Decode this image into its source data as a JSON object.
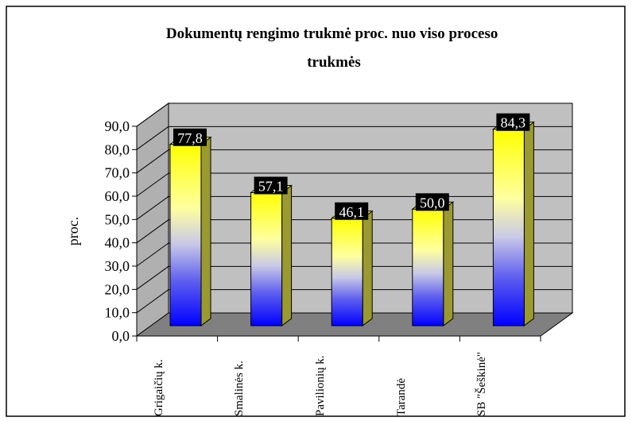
{
  "chart_data": {
    "type": "bar3d",
    "title": "Dokumentų rengimo trukmė proc. nuo viso proceso trukmės",
    "ylabel": "proc.",
    "categories": [
      "Grigaičių k.",
      "Smalinės k.",
      "Pavilionių k.",
      "Tarandė",
      "SB \"Šeškinė\""
    ],
    "values": [
      77.8,
      57.1,
      46.1,
      50.0,
      84.3
    ],
    "value_labels": [
      "77,8",
      "57,1",
      "46,1",
      "50,0",
      "84,3"
    ],
    "ylim": [
      0,
      90
    ],
    "yticks": [
      {
        "value": 0,
        "label": "0,0"
      },
      {
        "value": 10,
        "label": "10,0"
      },
      {
        "value": 20,
        "label": "20,0"
      },
      {
        "value": 30,
        "label": "30,0"
      },
      {
        "value": 40,
        "label": "40,0"
      },
      {
        "value": 50,
        "label": "50,0"
      },
      {
        "value": 60,
        "label": "60,0"
      },
      {
        "value": 70,
        "label": "70,0"
      },
      {
        "value": 80,
        "label": "80,0"
      },
      {
        "value": 90,
        "label": "90,0"
      }
    ],
    "grid": true
  }
}
